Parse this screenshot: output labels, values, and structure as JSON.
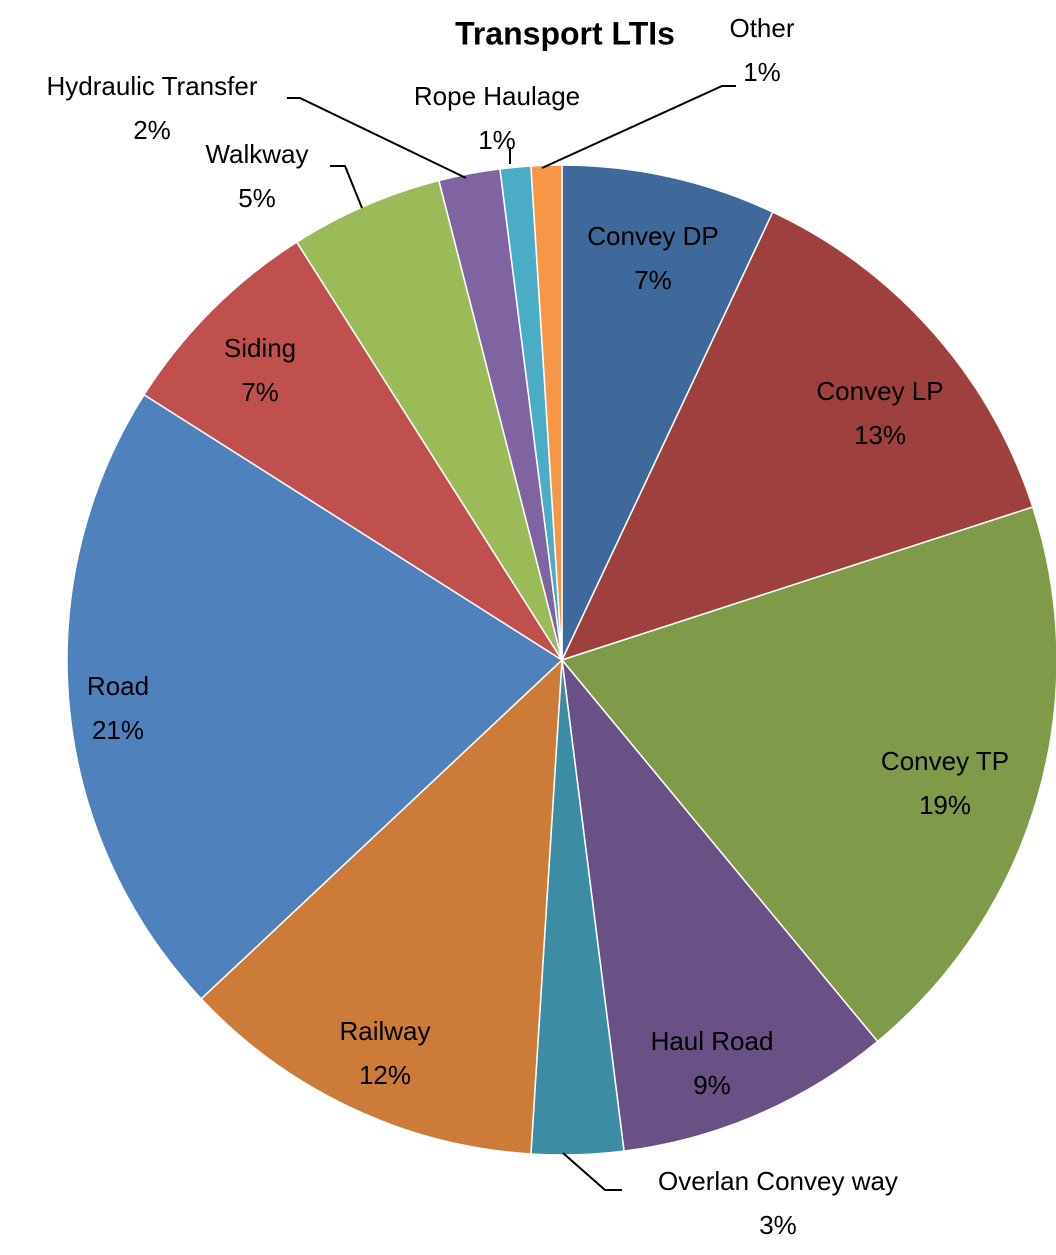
{
  "chart_data": {
    "type": "pie",
    "title": "Transport LTIs",
    "categories": [
      "Convey DP",
      "Convey LP",
      "Convey TP",
      "Haul Road",
      "Overlan Convey way",
      "Railway",
      "Road",
      "Siding",
      "Walkway",
      "Hydraulic Transfer",
      "Rope Haulage",
      "Other"
    ],
    "values": [
      7,
      13,
      19,
      9,
      3,
      12,
      21,
      7,
      5,
      2,
      1,
      1
    ],
    "value_labels": [
      "7%",
      "13%",
      "19%",
      "9%",
      "3%",
      "12%",
      "21%",
      "7%",
      "5%",
      "2%",
      "1%",
      "1%"
    ],
    "colors": [
      "#3f689b",
      "#9e413e",
      "#7f9a48",
      "#695185",
      "#3c8da3",
      "#cc7b38",
      "#4f81bd",
      "#c0504d",
      "#9bbb59",
      "#8064a2",
      "#4bacc6",
      "#f79646"
    ]
  }
}
